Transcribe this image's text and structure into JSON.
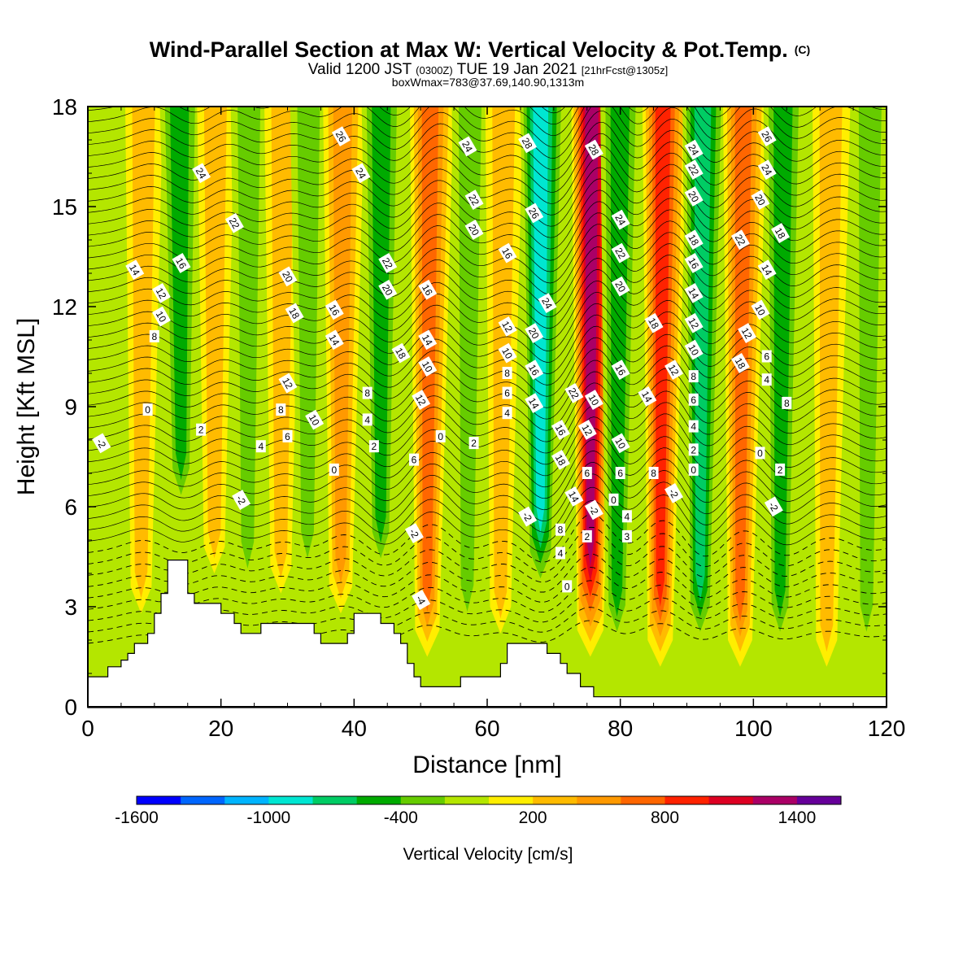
{
  "title": {
    "main": "Wind-Parallel Section at Max W: Vertical Velocity & Pot.Temp.",
    "main_mark": "(C)",
    "valid_prefix": "Valid 1200 JST",
    "valid_utc": "(0300Z)",
    "valid_date": "TUE 19 Jan 2021",
    "forecast": "[21hrFcst@1305z]",
    "info": "boxWmax=783@37.69,140.90,1313m"
  },
  "chart_data": {
    "type": "contour-section",
    "xlabel": "Distance [nm]",
    "ylabel": "Height [Kft MSL]",
    "xlim": [
      0,
      120
    ],
    "ylim": [
      0,
      18
    ],
    "xticks": [
      0,
      20,
      40,
      60,
      80,
      100,
      120
    ],
    "yticks": [
      0,
      3,
      6,
      9,
      12,
      15,
      18
    ],
    "colorbar": {
      "label": "Vertical Velocity [cm/s]",
      "tick_labels": [
        "-1600",
        "-1000",
        "-400",
        "200",
        "800",
        "1400"
      ],
      "tick_values": [
        -1600,
        -1000,
        -400,
        200,
        800,
        1400
      ],
      "range": [
        -1600,
        1600
      ],
      "colors": [
        "#0000ff",
        "#0066ff",
        "#00b4ff",
        "#00e6d2",
        "#00cc64",
        "#00aa00",
        "#66cc00",
        "#b4e600",
        "#ffee00",
        "#ffbb00",
        "#ff9900",
        "#ff6600",
        "#ff2200",
        "#dd0022",
        "#aa0066",
        "#660099"
      ]
    },
    "terrain": [
      [
        0,
        0.9
      ],
      [
        3,
        0.9
      ],
      [
        3,
        1.2
      ],
      [
        5,
        1.2
      ],
      [
        5,
        1.4
      ],
      [
        6,
        1.4
      ],
      [
        6,
        1.6
      ],
      [
        7,
        1.6
      ],
      [
        7,
        1.9
      ],
      [
        9,
        1.9
      ],
      [
        9,
        2.2
      ],
      [
        10,
        2.2
      ],
      [
        10,
        2.8
      ],
      [
        11,
        2.8
      ],
      [
        11,
        3.4
      ],
      [
        12,
        3.4
      ],
      [
        12,
        4.4
      ],
      [
        15,
        4.4
      ],
      [
        15,
        3.4
      ],
      [
        16,
        3.4
      ],
      [
        16,
        3.1
      ],
      [
        20,
        3.1
      ],
      [
        20,
        2.8
      ],
      [
        22,
        2.8
      ],
      [
        22,
        2.5
      ],
      [
        23,
        2.5
      ],
      [
        23,
        2.2
      ],
      [
        26,
        2.2
      ],
      [
        26,
        2.5
      ],
      [
        34,
        2.5
      ],
      [
        34,
        2.2
      ],
      [
        35,
        2.2
      ],
      [
        35,
        1.9
      ],
      [
        39,
        1.9
      ],
      [
        39,
        2.2
      ],
      [
        40,
        2.2
      ],
      [
        40,
        2.8
      ],
      [
        44,
        2.8
      ],
      [
        44,
        2.5
      ],
      [
        46,
        2.5
      ],
      [
        46,
        2.2
      ],
      [
        47,
        2.2
      ],
      [
        47,
        1.9
      ],
      [
        48,
        1.9
      ],
      [
        48,
        1.3
      ],
      [
        49,
        1.3
      ],
      [
        49,
        0.9
      ],
      [
        50,
        0.9
      ],
      [
        50,
        0.6
      ],
      [
        56,
        0.6
      ],
      [
        56,
        0.9
      ],
      [
        62,
        0.9
      ],
      [
        62,
        1.3
      ],
      [
        63,
        1.3
      ],
      [
        63,
        1.9
      ],
      [
        69,
        1.9
      ],
      [
        69,
        1.6
      ],
      [
        71,
        1.6
      ],
      [
        71,
        1.3
      ],
      [
        72,
        1.3
      ],
      [
        72,
        1.0
      ],
      [
        74,
        1.0
      ],
      [
        74,
        0.6
      ],
      [
        76,
        0.6
      ],
      [
        76,
        0.3
      ],
      [
        120,
        0.3
      ]
    ],
    "w_bands": [
      {
        "x": 8,
        "w": 300
      },
      {
        "x": 14,
        "w": -450
      },
      {
        "x": 19,
        "w": 250
      },
      {
        "x": 24,
        "w": -350
      },
      {
        "x": 29,
        "w": 250
      },
      {
        "x": 33,
        "w": -350
      },
      {
        "x": 38,
        "w": 450
      },
      {
        "x": 44,
        "w": -550
      },
      {
        "x": 51,
        "w": 750
      },
      {
        "x": 57,
        "w": -350
      },
      {
        "x": 62,
        "w": 250
      },
      {
        "x": 68,
        "w": -800
      },
      {
        "x": 75.5,
        "w": 1300
      },
      {
        "x": 79.5,
        "w": -550
      },
      {
        "x": 86,
        "w": 950
      },
      {
        "x": 92,
        "w": -700
      },
      {
        "x": 98,
        "w": 600
      },
      {
        "x": 104,
        "w": -550
      },
      {
        "x": 111,
        "w": 250
      },
      {
        "x": 117,
        "w": -300
      }
    ],
    "contour_labels": [
      {
        "x": 2,
        "y": 7.9,
        "text": "-2"
      },
      {
        "x": 9,
        "y": 8.9,
        "text": "0"
      },
      {
        "x": 10,
        "y": 11.1,
        "text": "8"
      },
      {
        "x": 11,
        "y": 11.7,
        "text": "10"
      },
      {
        "x": 11,
        "y": 12.4,
        "text": "12"
      },
      {
        "x": 7,
        "y": 13.1,
        "text": "14"
      },
      {
        "x": 14,
        "y": 13.3,
        "text": "16"
      },
      {
        "x": 17,
        "y": 16.0,
        "text": "24"
      },
      {
        "x": 22,
        "y": 14.5,
        "text": "22"
      },
      {
        "x": 17,
        "y": 8.3,
        "text": "2"
      },
      {
        "x": 26,
        "y": 7.8,
        "text": "4"
      },
      {
        "x": 23,
        "y": 6.2,
        "text": "-2"
      },
      {
        "x": 30,
        "y": 9.7,
        "text": "12"
      },
      {
        "x": 29,
        "y": 8.9,
        "text": "8"
      },
      {
        "x": 30,
        "y": 8.1,
        "text": "6"
      },
      {
        "x": 30,
        "y": 12.9,
        "text": "20"
      },
      {
        "x": 31,
        "y": 11.8,
        "text": "18"
      },
      {
        "x": 34,
        "y": 8.6,
        "text": "10"
      },
      {
        "x": 37,
        "y": 7.1,
        "text": "0"
      },
      {
        "x": 37,
        "y": 11.0,
        "text": "14"
      },
      {
        "x": 37,
        "y": 11.9,
        "text": "16"
      },
      {
        "x": 38,
        "y": 17.1,
        "text": "26"
      },
      {
        "x": 41,
        "y": 16.0,
        "text": "24"
      },
      {
        "x": 42,
        "y": 9.4,
        "text": "8"
      },
      {
        "x": 42,
        "y": 8.6,
        "text": "4"
      },
      {
        "x": 43,
        "y": 7.8,
        "text": "2"
      },
      {
        "x": 45,
        "y": 13.3,
        "text": "22"
      },
      {
        "x": 45,
        "y": 12.5,
        "text": "20"
      },
      {
        "x": 47,
        "y": 10.6,
        "text": "18"
      },
      {
        "x": 49,
        "y": 5.2,
        "text": "-2"
      },
      {
        "x": 50,
        "y": 3.2,
        "text": "-4"
      },
      {
        "x": 50,
        "y": 9.2,
        "text": "12"
      },
      {
        "x": 51,
        "y": 10.2,
        "text": "10"
      },
      {
        "x": 51,
        "y": 11.0,
        "text": "14"
      },
      {
        "x": 51,
        "y": 12.5,
        "text": "16"
      },
      {
        "x": 49,
        "y": 7.4,
        "text": "6"
      },
      {
        "x": 53,
        "y": 8.1,
        "text": "0"
      },
      {
        "x": 57,
        "y": 16.8,
        "text": "24"
      },
      {
        "x": 58,
        "y": 15.2,
        "text": "22"
      },
      {
        "x": 58,
        "y": 14.3,
        "text": "20"
      },
      {
        "x": 58,
        "y": 7.9,
        "text": "2"
      },
      {
        "x": 63,
        "y": 13.6,
        "text": "16"
      },
      {
        "x": 63,
        "y": 11.4,
        "text": "12"
      },
      {
        "x": 63,
        "y": 10.6,
        "text": "10"
      },
      {
        "x": 63,
        "y": 10.0,
        "text": "8"
      },
      {
        "x": 63,
        "y": 9.4,
        "text": "6"
      },
      {
        "x": 63,
        "y": 8.8,
        "text": "4"
      },
      {
        "x": 66,
        "y": 16.9,
        "text": "28"
      },
      {
        "x": 67,
        "y": 14.8,
        "text": "26"
      },
      {
        "x": 69,
        "y": 12.1,
        "text": "24"
      },
      {
        "x": 67,
        "y": 11.2,
        "text": "20"
      },
      {
        "x": 67,
        "y": 10.1,
        "text": "16"
      },
      {
        "x": 67,
        "y": 9.1,
        "text": "14"
      },
      {
        "x": 66,
        "y": 5.7,
        "text": "-2"
      },
      {
        "x": 71,
        "y": 8.3,
        "text": "16"
      },
      {
        "x": 71,
        "y": 7.4,
        "text": "18"
      },
      {
        "x": 73,
        "y": 9.4,
        "text": "22"
      },
      {
        "x": 73,
        "y": 6.3,
        "text": "14"
      },
      {
        "x": 71,
        "y": 5.3,
        "text": "8"
      },
      {
        "x": 71,
        "y": 4.6,
        "text": "4"
      },
      {
        "x": 72,
        "y": 3.6,
        "text": "0"
      },
      {
        "x": 76,
        "y": 16.7,
        "text": "28"
      },
      {
        "x": 76,
        "y": 9.2,
        "text": "10"
      },
      {
        "x": 75,
        "y": 8.3,
        "text": "12"
      },
      {
        "x": 75,
        "y": 7.0,
        "text": "6"
      },
      {
        "x": 76,
        "y": 5.9,
        "text": "-2"
      },
      {
        "x": 75,
        "y": 5.1,
        "text": "2"
      },
      {
        "x": 80,
        "y": 14.6,
        "text": "24"
      },
      {
        "x": 80,
        "y": 13.6,
        "text": "22"
      },
      {
        "x": 80,
        "y": 12.6,
        "text": "20"
      },
      {
        "x": 80,
        "y": 10.1,
        "text": "16"
      },
      {
        "x": 80,
        "y": 7.9,
        "text": "10"
      },
      {
        "x": 80,
        "y": 7.0,
        "text": "6"
      },
      {
        "x": 79,
        "y": 6.2,
        "text": "0"
      },
      {
        "x": 81,
        "y": 5.7,
        "text": "4"
      },
      {
        "x": 81,
        "y": 5.1,
        "text": "3"
      },
      {
        "x": 84,
        "y": 9.3,
        "text": "14"
      },
      {
        "x": 85,
        "y": 11.5,
        "text": "18"
      },
      {
        "x": 85,
        "y": 7.0,
        "text": "8"
      },
      {
        "x": 88,
        "y": 10.1,
        "text": "12"
      },
      {
        "x": 88,
        "y": 6.4,
        "text": "-2"
      },
      {
        "x": 91,
        "y": 16.7,
        "text": "24"
      },
      {
        "x": 91,
        "y": 16.1,
        "text": "22"
      },
      {
        "x": 91,
        "y": 15.3,
        "text": "20"
      },
      {
        "x": 91,
        "y": 14.0,
        "text": "18"
      },
      {
        "x": 91,
        "y": 13.3,
        "text": "16"
      },
      {
        "x": 91,
        "y": 12.4,
        "text": "14"
      },
      {
        "x": 91,
        "y": 11.5,
        "text": "12"
      },
      {
        "x": 91,
        "y": 10.7,
        "text": "10"
      },
      {
        "x": 91,
        "y": 9.9,
        "text": "8"
      },
      {
        "x": 91,
        "y": 9.2,
        "text": "6"
      },
      {
        "x": 91,
        "y": 8.4,
        "text": "4"
      },
      {
        "x": 91,
        "y": 7.7,
        "text": "2"
      },
      {
        "x": 91,
        "y": 7.1,
        "text": "0"
      },
      {
        "x": 98,
        "y": 10.3,
        "text": "18"
      },
      {
        "x": 98,
        "y": 14.0,
        "text": "22"
      },
      {
        "x": 99,
        "y": 11.2,
        "text": "12"
      },
      {
        "x": 101,
        "y": 7.6,
        "text": "0"
      },
      {
        "x": 102,
        "y": 17.1,
        "text": "26"
      },
      {
        "x": 102,
        "y": 16.1,
        "text": "24"
      },
      {
        "x": 101,
        "y": 15.2,
        "text": "20"
      },
      {
        "x": 104,
        "y": 14.2,
        "text": "18"
      },
      {
        "x": 102,
        "y": 13.1,
        "text": "14"
      },
      {
        "x": 101,
        "y": 11.9,
        "text": "10"
      },
      {
        "x": 102,
        "y": 10.5,
        "text": "6"
      },
      {
        "x": 102,
        "y": 9.8,
        "text": "4"
      },
      {
        "x": 105,
        "y": 9.1,
        "text": "8"
      },
      {
        "x": 104,
        "y": 7.1,
        "text": "2"
      },
      {
        "x": 103,
        "y": 6.0,
        "text": "-2"
      }
    ]
  }
}
